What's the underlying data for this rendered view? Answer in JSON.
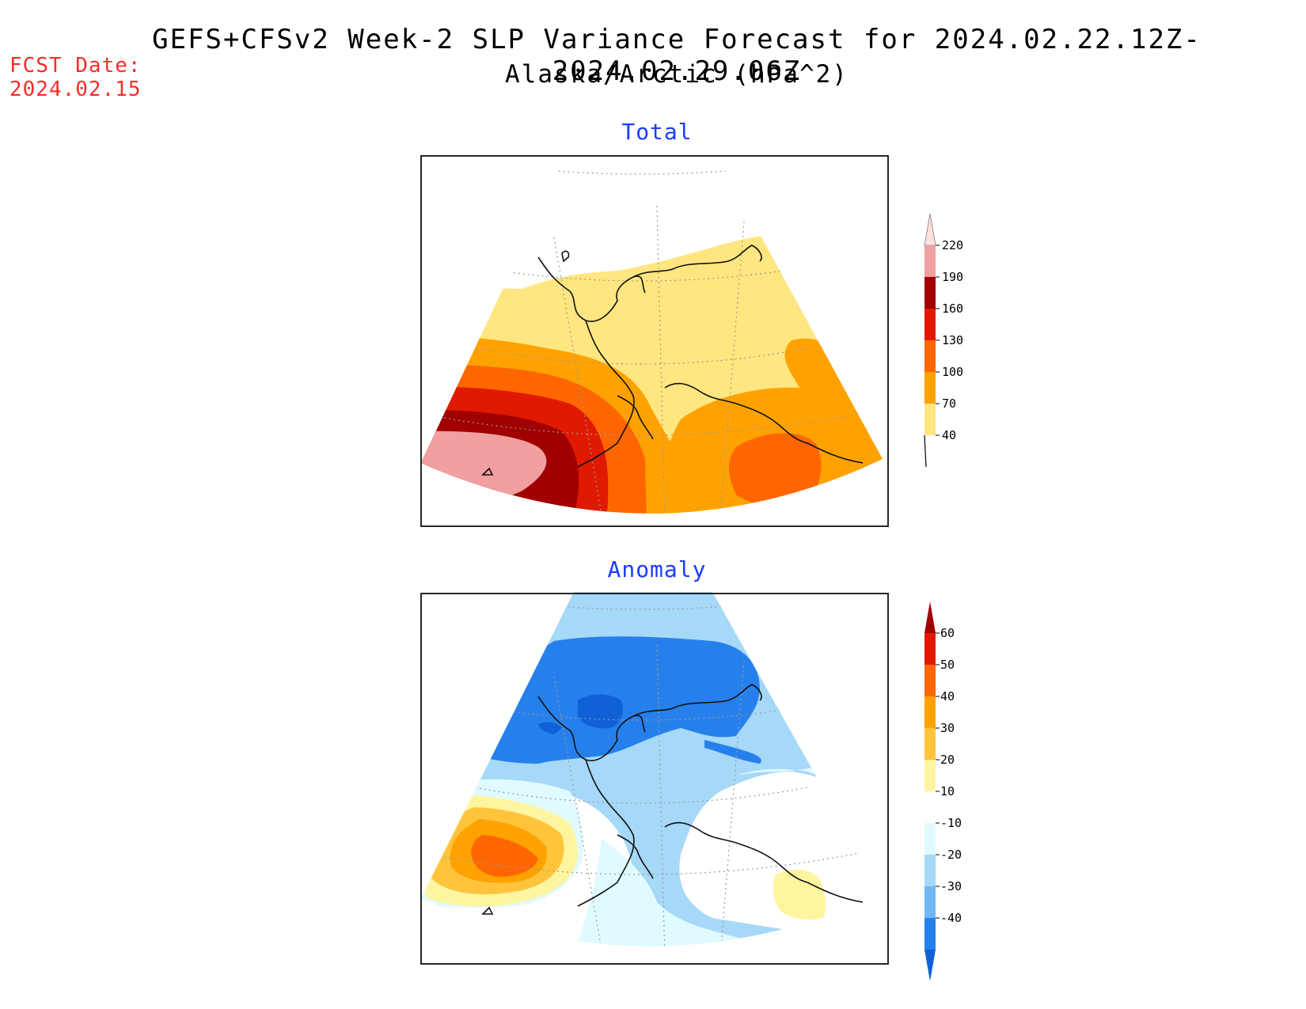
{
  "header": {
    "title": "GEFS+CFSv2 Week-2 SLP Variance Forecast for 2024.02.22.12Z-2024.02.29.06Z",
    "subtitle": "Alaska/Arctic (hPa^2)",
    "fcst_label": "FCST Date:",
    "fcst_date": "2024.02.15"
  },
  "panels": [
    {
      "title": "Total",
      "colorbar": {
        "labels": [
          "220",
          "190",
          "160",
          "130",
          "100",
          "70",
          "40"
        ],
        "colors": [
          "#ffe0e0",
          "#f0a0a0",
          "#a00000",
          "#e01a00",
          "#ff6600",
          "#ffa200",
          "#ffe680"
        ]
      }
    },
    {
      "title": "Anomaly",
      "colorbar": {
        "labels": [
          "60",
          "50",
          "40",
          "30",
          "20",
          "10",
          "-10",
          "-20",
          "-30",
          "-40"
        ],
        "colors": [
          "#a00000",
          "#e01a00",
          "#ff6600",
          "#ffa200",
          "#ffc43c",
          "#fff5a0",
          "#ffffff",
          "#e0fbff",
          "#a6d8f8",
          "#70b8f5",
          "#2680ec",
          "#1060d8"
        ]
      }
    }
  ]
}
